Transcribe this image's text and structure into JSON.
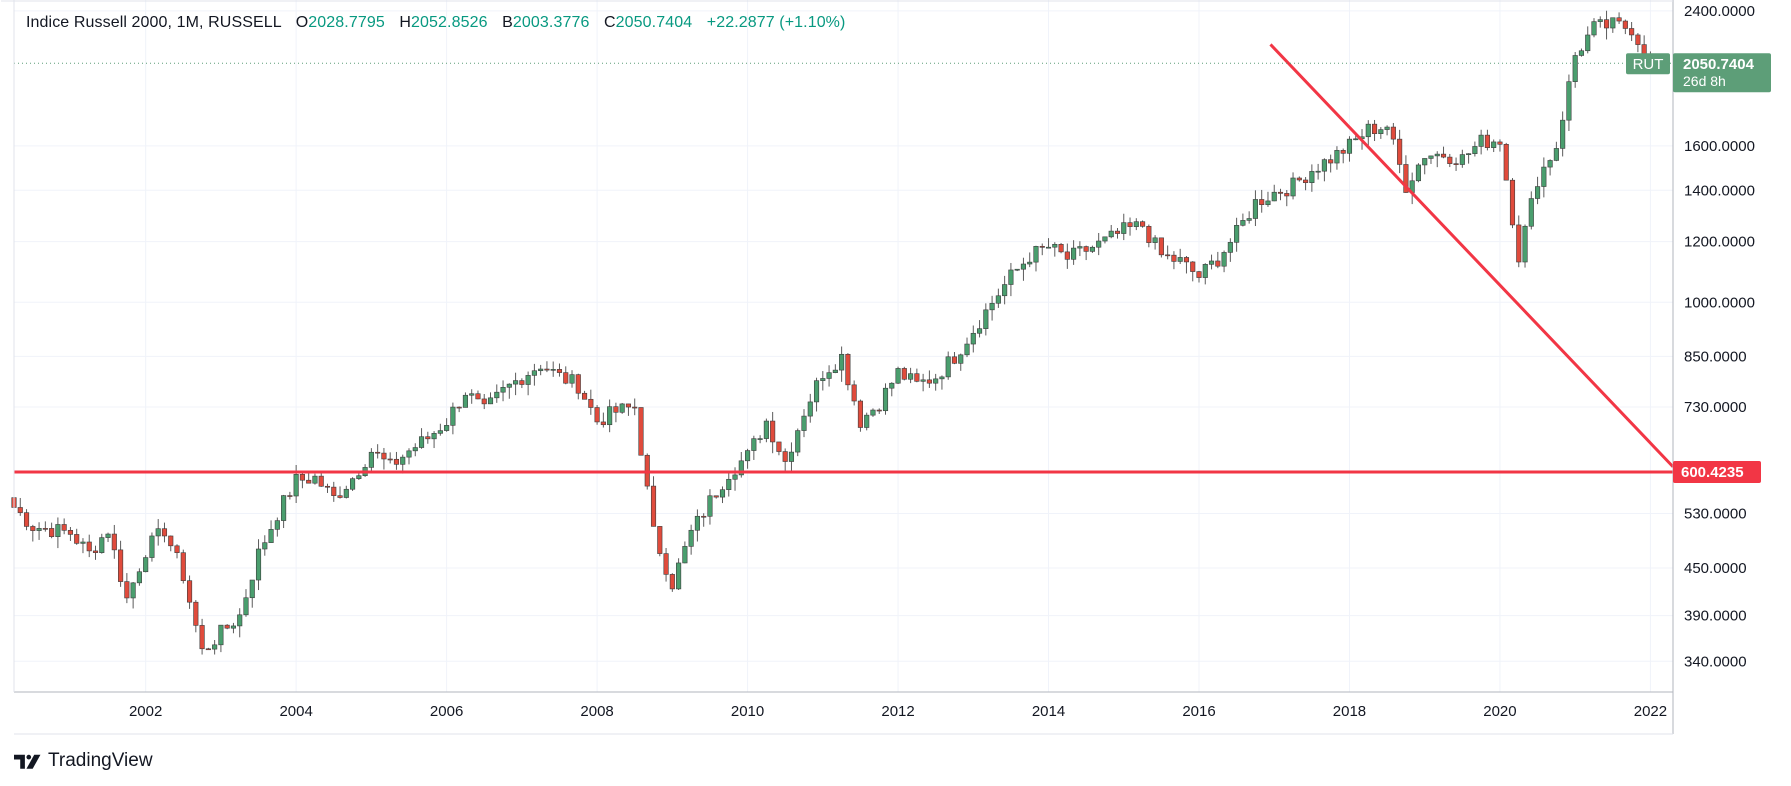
{
  "header": {
    "symbol": "Indice Russell 2000, 1M, RUSSELL",
    "open_label": "O",
    "open": "2028.7795",
    "high_label": "H",
    "high": "2052.8526",
    "low_label": "B",
    "low": "2003.3776",
    "close_label": "C",
    "close": "2050.7404",
    "change": "+22.2877 (+1.10%)"
  },
  "price_badge": {
    "ticker": "RUT",
    "price": "2050.7404",
    "countdown": "26d 8h",
    "color": "#5d9e78"
  },
  "level_badge": {
    "label": "600.4235",
    "color": "#f23645"
  },
  "brand": {
    "name": "TradingView"
  },
  "colors": {
    "up": "#4a9e6e",
    "down": "#e04b3c",
    "line": "#f23645"
  },
  "chart_data": {
    "type": "candlestick",
    "title": "Indice Russell 2000, 1M, RUSSELL",
    "y_scale": "log",
    "ylim": [
      310,
      2480
    ],
    "xlim": [
      2000.25,
      2022.3
    ],
    "y_ticks": [
      "2400.0000",
      "1600.0000",
      "1400.0000",
      "1200.0000",
      "1000.0000",
      "850.0000",
      "730.0000",
      "600.4235",
      "530.0000",
      "450.0000",
      "390.0000",
      "340.0000"
    ],
    "y_tick_values": [
      2400,
      1600,
      1400,
      1200,
      1000,
      850,
      730,
      600.4235,
      530,
      450,
      390,
      340
    ],
    "x_ticks": [
      "2002",
      "2004",
      "2006",
      "2008",
      "2010",
      "2012",
      "2014",
      "2016",
      "2018",
      "2020",
      "2022"
    ],
    "x_tick_values": [
      2002,
      2004,
      2006,
      2008,
      2010,
      2012,
      2014,
      2016,
      2018,
      2020,
      2022
    ],
    "grid": true,
    "horizontal_line": {
      "value": 600.4235
    },
    "trend_line": {
      "from": {
        "x": 2016.95,
        "y": 2170
      },
      "to": {
        "x": 2022.3,
        "y": 610
      }
    },
    "close_series": [
      [
        2000.25,
        540
      ],
      [
        2000.5,
        510
      ],
      [
        2000.75,
        505
      ],
      [
        2001.0,
        500
      ],
      [
        2001.25,
        470
      ],
      [
        2001.5,
        505
      ],
      [
        2001.75,
        410
      ],
      [
        2002.0,
        475
      ],
      [
        2002.25,
        505
      ],
      [
        2002.5,
        440
      ],
      [
        2002.75,
        350
      ],
      [
        2003.0,
        370
      ],
      [
        2003.25,
        390
      ],
      [
        2003.5,
        470
      ],
      [
        2003.75,
        530
      ],
      [
        2004.0,
        585
      ],
      [
        2004.25,
        590
      ],
      [
        2004.5,
        555
      ],
      [
        2004.75,
        590
      ],
      [
        2005.0,
        640
      ],
      [
        2005.25,
        610
      ],
      [
        2005.5,
        640
      ],
      [
        2005.75,
        665
      ],
      [
        2006.0,
        700
      ],
      [
        2006.25,
        765
      ],
      [
        2006.5,
        720
      ],
      [
        2006.75,
        765
      ],
      [
        2007.0,
        800
      ],
      [
        2007.25,
        830
      ],
      [
        2007.5,
        800
      ],
      [
        2007.75,
        780
      ],
      [
        2008.0,
        700
      ],
      [
        2008.25,
        720
      ],
      [
        2008.5,
        730
      ],
      [
        2008.75,
        500
      ],
      [
        2009.0,
        430
      ],
      [
        2009.25,
        500
      ],
      [
        2009.5,
        550
      ],
      [
        2009.75,
        600
      ],
      [
        2010.0,
        630
      ],
      [
        2010.25,
        700
      ],
      [
        2010.5,
        620
      ],
      [
        2010.75,
        720
      ],
      [
        2011.0,
        810
      ],
      [
        2011.25,
        850
      ],
      [
        2011.5,
        700
      ],
      [
        2011.75,
        740
      ],
      [
        2012.0,
        810
      ],
      [
        2012.25,
        780
      ],
      [
        2012.5,
        800
      ],
      [
        2012.75,
        850
      ],
      [
        2013.0,
        920
      ],
      [
        2013.25,
        1000
      ],
      [
        2013.5,
        1080
      ],
      [
        2013.75,
        1150
      ],
      [
        2014.0,
        1180
      ],
      [
        2014.25,
        1140
      ],
      [
        2014.5,
        1170
      ],
      [
        2014.75,
        1200
      ],
      [
        2015.0,
        1240
      ],
      [
        2015.25,
        1260
      ],
      [
        2015.5,
        1150
      ],
      [
        2015.75,
        1130
      ],
      [
        2016.0,
        1080
      ],
      [
        2016.25,
        1140
      ],
      [
        2016.5,
        1230
      ],
      [
        2016.75,
        1350
      ],
      [
        2017.0,
        1390
      ],
      [
        2017.25,
        1420
      ],
      [
        2017.5,
        1490
      ],
      [
        2017.75,
        1540
      ],
      [
        2018.0,
        1600
      ],
      [
        2018.25,
        1680
      ],
      [
        2018.5,
        1700
      ],
      [
        2018.75,
        1420
      ],
      [
        2019.0,
        1560
      ],
      [
        2019.25,
        1560
      ],
      [
        2019.5,
        1540
      ],
      [
        2019.75,
        1620
      ],
      [
        2020.0,
        1630
      ],
      [
        2020.25,
        1150
      ],
      [
        2020.5,
        1450
      ],
      [
        2020.75,
        1600
      ],
      [
        2021.0,
        2100
      ],
      [
        2021.25,
        2280
      ],
      [
        2021.5,
        2300
      ],
      [
        2021.75,
        2280
      ],
      [
        2022.0,
        2050.7404
      ]
    ]
  }
}
